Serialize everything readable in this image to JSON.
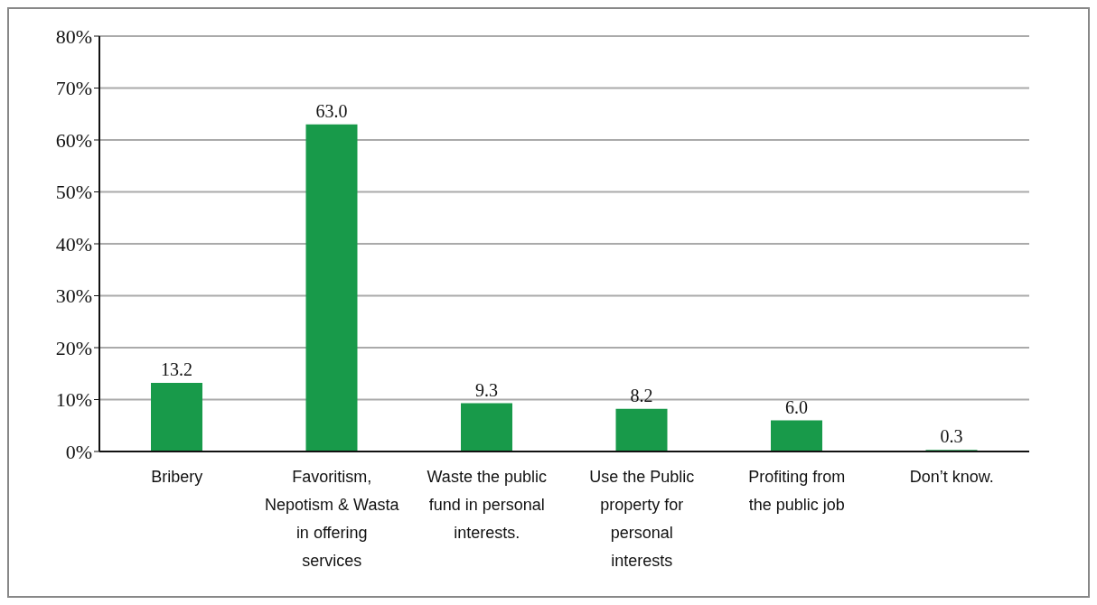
{
  "chart_data": {
    "type": "bar",
    "categories": [
      "Bribery",
      "Favoritism, Nepotism & Wasta in offering services",
      "Waste the public fund in personal interests.",
      "Use the Public property for personal interests",
      "Profiting from the public job",
      "Don’t know."
    ],
    "values": [
      13.2,
      63.0,
      9.3,
      8.2,
      6.0,
      0.3
    ],
    "value_labels": [
      "13.2",
      "63.0",
      "9.3",
      "8.2",
      "6.0",
      "0.3"
    ],
    "color": "#189a4a",
    "ylim": [
      0,
      80
    ],
    "yticks": [
      {
        "value": 0,
        "label": "0%"
      },
      {
        "value": 10,
        "label": "10%"
      },
      {
        "value": 20,
        "label": "20%"
      },
      {
        "value": 30,
        "label": "30%"
      },
      {
        "value": 40,
        "label": "40%"
      },
      {
        "value": 50,
        "label": "50%"
      },
      {
        "value": 60,
        "label": "60%"
      },
      {
        "value": 70,
        "label": "70%"
      },
      {
        "value": 80,
        "label": "80%"
      }
    ],
    "grid": "y",
    "legend": false
  }
}
